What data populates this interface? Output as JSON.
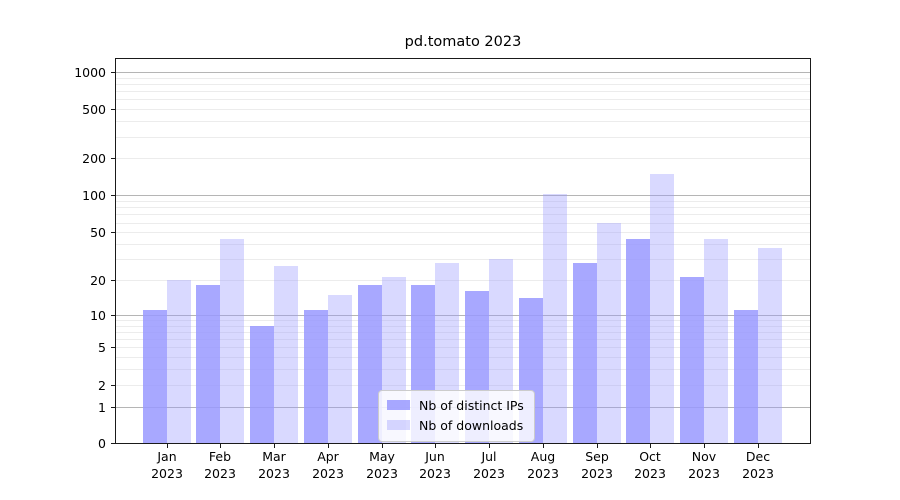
{
  "chart_data": {
    "type": "bar",
    "title": "pd.tomato 2023",
    "categories": [
      "Jan 2023",
      "Feb 2023",
      "Mar 2023",
      "Apr 2023",
      "May 2023",
      "Jun 2023",
      "Jul 2023",
      "Aug 2023",
      "Sep 2023",
      "Oct 2023",
      "Nov 2023",
      "Dec 2023"
    ],
    "month_labels": [
      "Jan",
      "Feb",
      "Mar",
      "Apr",
      "May",
      "Jun",
      "Jul",
      "Aug",
      "Sep",
      "Oct",
      "Nov",
      "Dec"
    ],
    "year_label": "2023",
    "series": [
      {
        "name": "Nb of distinct IPs",
        "color": "#9999ff",
        "fill_alpha": 0.85,
        "values": [
          11,
          18,
          8,
          11,
          18,
          18,
          16,
          14,
          28,
          44,
          21,
          11
        ]
      },
      {
        "name": "Nb of downloads",
        "color": "#9999ff",
        "fill_alpha": 0.37,
        "values": [
          20,
          44,
          26,
          15,
          21,
          28,
          30,
          103,
          60,
          150,
          44,
          37
        ]
      }
    ],
    "xlabel": "",
    "ylabel": "",
    "yscale": "log10(value+1)",
    "ylim": [
      0,
      1280
    ],
    "yticks": [
      0,
      1,
      2,
      5,
      10,
      20,
      50,
      100,
      200,
      500,
      1000
    ],
    "gridlines": {
      "major": [
        1,
        10,
        100,
        1000
      ],
      "minor": [
        2,
        3,
        4,
        5,
        6,
        7,
        8,
        9,
        20,
        30,
        40,
        50,
        60,
        70,
        80,
        90,
        200,
        300,
        400,
        500,
        600,
        700,
        800,
        900
      ]
    },
    "legend_position": "lower center",
    "grid": true
  }
}
